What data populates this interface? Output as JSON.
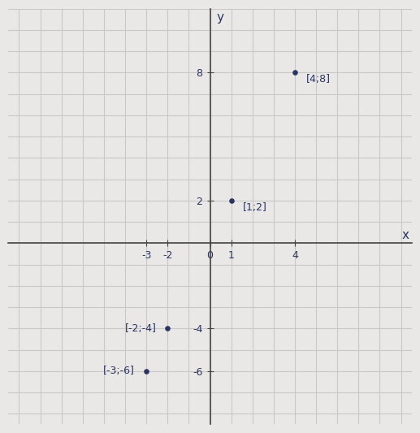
{
  "chart_data": {
    "type": "scatter",
    "x_label": "x",
    "y_label": "y",
    "x": [
      -3,
      -2,
      1,
      4
    ],
    "values": [
      -6,
      -4,
      2,
      8
    ],
    "annotations": [
      "[-3;-6]",
      "[-2;-4]",
      "[1;2]",
      "[4;8]"
    ],
    "color": "#2b3460",
    "xlim": [
      -9.5,
      9.5
    ],
    "ylim": [
      -8.5,
      11
    ],
    "xticks": [
      -3,
      -2,
      0,
      1,
      4
    ],
    "yticks": [
      -6,
      -4,
      2,
      8
    ],
    "grid": true
  }
}
